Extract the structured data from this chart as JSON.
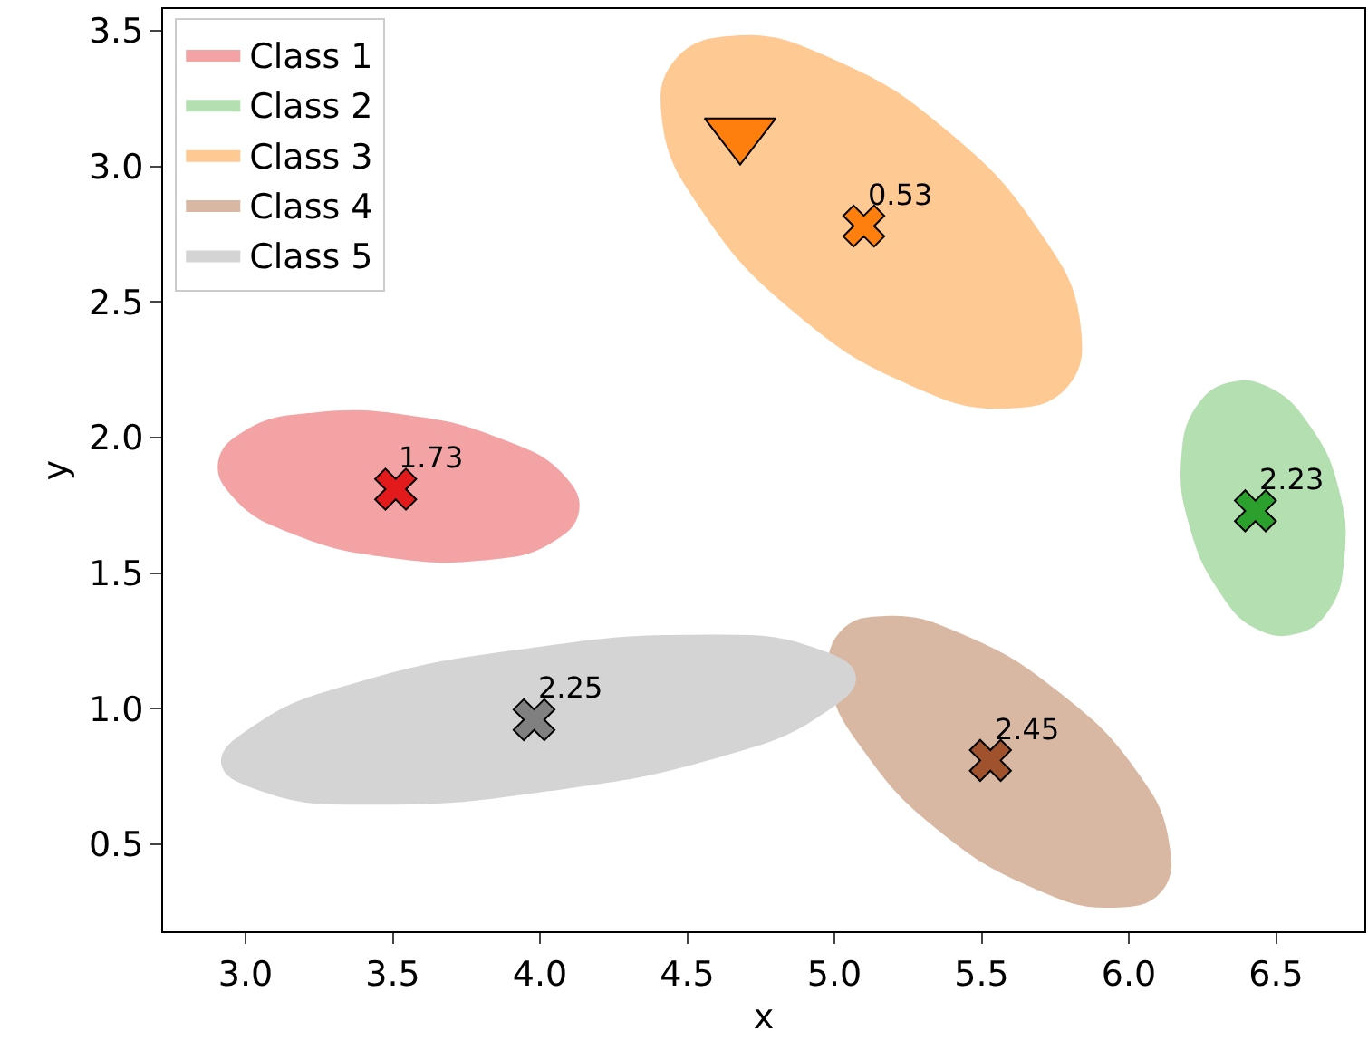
{
  "chart_data": {
    "type": "scatter",
    "xlabel": "x",
    "ylabel": "y",
    "xlim": [
      2.72,
      6.8
    ],
    "ylim": [
      0.18,
      3.58
    ],
    "xticks": [
      {
        "value": 3,
        "label": "3.0"
      },
      {
        "value": 3.5,
        "label": "3.5"
      },
      {
        "value": 4,
        "label": "4.0"
      },
      {
        "value": 4.5,
        "label": "4.5"
      },
      {
        "value": 5,
        "label": "5.0"
      },
      {
        "value": 5.5,
        "label": "5.5"
      },
      {
        "value": 6,
        "label": "6.0"
      },
      {
        "value": 6.5,
        "label": "6.5"
      }
    ],
    "yticks": [
      {
        "value": 0.5,
        "label": "0.5"
      },
      {
        "value": 1,
        "label": "1.0"
      },
      {
        "value": 1.5,
        "label": "1.5"
      },
      {
        "value": 2,
        "label": "2.0"
      },
      {
        "value": 2.5,
        "label": "2.5"
      },
      {
        "value": 3,
        "label": "3.0"
      },
      {
        "value": 3.5,
        "label": "3.5"
      }
    ],
    "grid": false,
    "legend": "top left",
    "series": [
      {
        "type": "area",
        "name": "Class 1",
        "color": "#f4a3a5",
        "x": [
          4.13,
          4.03,
          3.8,
          3.49,
          3.18,
          2.97,
          2.91,
          3.01,
          3.24,
          3.55,
          3.85,
          4.07,
          4.13
        ],
        "values": [
          1.73,
          1.61,
          1.55,
          1.56,
          1.64,
          1.77,
          1.91,
          2.03,
          2.09,
          2.08,
          2.0,
          1.87,
          1.73
        ]
      },
      {
        "type": "area",
        "name": "Class 2",
        "color": "#b4dfb0",
        "x": [
          6.57,
          6.43,
          6.3,
          6.21,
          6.18,
          6.23,
          6.34,
          6.48,
          6.62,
          6.71,
          6.73,
          6.68,
          6.57
        ],
        "values": [
          1.28,
          1.3,
          1.45,
          1.67,
          1.91,
          2.11,
          2.2,
          2.18,
          2.03,
          1.81,
          1.57,
          1.37,
          1.28
        ]
      },
      {
        "type": "area",
        "name": "Class 3",
        "color": "#ffc993",
        "x": [
          5.79,
          5.57,
          5.23,
          4.87,
          4.57,
          4.42,
          4.46,
          4.68,
          5.02,
          5.38,
          5.68,
          5.83,
          5.79
        ],
        "values": [
          2.19,
          2.11,
          2.21,
          2.46,
          2.81,
          3.15,
          3.39,
          3.48,
          3.38,
          3.13,
          2.78,
          2.44,
          2.19
        ]
      },
      {
        "type": "area",
        "name": "Class 4",
        "color": "#d9b8a3",
        "x": [
          6.11,
          5.93,
          5.66,
          5.36,
          5.12,
          4.99,
          5.02,
          5.19,
          5.46,
          5.76,
          6.01,
          6.13,
          6.11
        ],
        "values": [
          0.33,
          0.27,
          0.35,
          0.55,
          0.82,
          1.09,
          1.28,
          1.34,
          1.26,
          1.06,
          0.79,
          0.53,
          0.33
        ]
      },
      {
        "type": "area",
        "name": "Class 5",
        "color": "#d4d4d4",
        "x": [
          5.07,
          4.94,
          4.56,
          4.03,
          3.49,
          3.08,
          2.92,
          3.05,
          3.43,
          3.96,
          4.5,
          4.91,
          5.07
        ],
        "values": [
          1.12,
          0.97,
          0.81,
          0.7,
          0.65,
          0.69,
          0.8,
          0.95,
          1.11,
          1.22,
          1.27,
          1.23,
          1.12
        ]
      },
      {
        "type": "scatter",
        "marker": "cross",
        "x": [
          3.51,
          6.43,
          5.1,
          5.53,
          3.98
        ],
        "values": [
          1.81,
          1.73,
          2.78,
          0.81,
          0.96
        ],
        "colors": [
          "#e31a1c",
          "#2ca02c",
          "#ff7f0e",
          "#a0522d",
          "#808080"
        ]
      },
      {
        "marker": "triangle",
        "x": [
          4.68
        ],
        "values": [
          3.12
        ],
        "color": "#ff7f0e"
      }
    ],
    "annotations": [
      {
        "text": "1.73",
        "x": 3.51,
        "y": 1.81
      },
      {
        "text": "2.23",
        "x": 6.43,
        "y": 1.73
      },
      {
        "text": "0.53",
        "x": 5.1,
        "y": 2.78
      },
      {
        "text": "2.45",
        "x": 5.53,
        "y": 0.81
      },
      {
        "text": "2.25",
        "x": 3.98,
        "y": 0.96
      }
    ]
  }
}
